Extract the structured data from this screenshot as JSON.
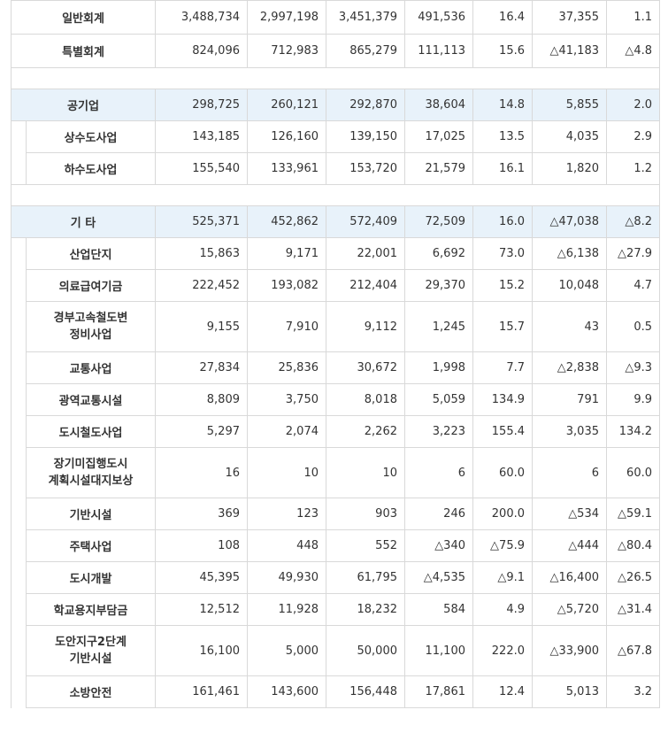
{
  "rows": [
    {
      "name": "일반회계",
      "v": [
        "3,488,734",
        "2,997,198",
        "3,451,379",
        "491,536",
        "16.4",
        "37,355",
        "1.1"
      ]
    },
    {
      "name": "특별회계",
      "v": [
        "824,096",
        "712,983",
        "865,279",
        "111,113",
        "15.6",
        "△41,183",
        "△4.8"
      ]
    },
    {
      "name": "공기업",
      "v": [
        "298,725",
        "260,121",
        "292,870",
        "38,604",
        "14.8",
        "5,855",
        "2.0"
      ]
    },
    {
      "name": "상수도사업",
      "v": [
        "143,185",
        "126,160",
        "139,150",
        "17,025",
        "13.5",
        "4,035",
        "2.9"
      ]
    },
    {
      "name": "하수도사업",
      "v": [
        "155,540",
        "133,961",
        "153,720",
        "21,579",
        "16.1",
        "1,820",
        "1.2"
      ]
    },
    {
      "name": "기 타",
      "v": [
        "525,371",
        "452,862",
        "572,409",
        "72,509",
        "16.0",
        "△47,038",
        "△8.2"
      ]
    },
    {
      "name": "산업단지",
      "v": [
        "15,863",
        "9,171",
        "22,001",
        "6,692",
        "73.0",
        "△6,138",
        "△27.9"
      ]
    },
    {
      "name": "의료급여기금",
      "v": [
        "222,452",
        "193,082",
        "212,404",
        "29,370",
        "15.2",
        "10,048",
        "4.7"
      ]
    },
    {
      "name1": "경부고속철도변",
      "name2": "정비사업",
      "v": [
        "9,155",
        "7,910",
        "9,112",
        "1,245",
        "15.7",
        "43",
        "0.5"
      ]
    },
    {
      "name": "교통사업",
      "v": [
        "27,834",
        "25,836",
        "30,672",
        "1,998",
        "7.7",
        "△2,838",
        "△9.3"
      ]
    },
    {
      "name": "광역교통시설",
      "v": [
        "8,809",
        "3,750",
        "8,018",
        "5,059",
        "134.9",
        "791",
        "9.9"
      ]
    },
    {
      "name": "도시철도사업",
      "v": [
        "5,297",
        "2,074",
        "2,262",
        "3,223",
        "155.4",
        "3,035",
        "134.2"
      ]
    },
    {
      "name1": "장기미집행도시",
      "name2": "계획시설대지보상",
      "v": [
        "16",
        "10",
        "10",
        "6",
        "60.0",
        "6",
        "60.0"
      ]
    },
    {
      "name": "기반시설",
      "v": [
        "369",
        "123",
        "903",
        "246",
        "200.0",
        "△534",
        "△59.1"
      ]
    },
    {
      "name": "주택사업",
      "v": [
        "108",
        "448",
        "552",
        "△340",
        "△75.9",
        "△444",
        "△80.4"
      ]
    },
    {
      "name": "도시개발",
      "v": [
        "45,395",
        "49,930",
        "61,795",
        "△4,535",
        "△9.1",
        "△16,400",
        "△26.5"
      ]
    },
    {
      "name": "학교용지부담금",
      "v": [
        "12,512",
        "11,928",
        "18,232",
        "584",
        "4.9",
        "△5,720",
        "△31.4"
      ]
    },
    {
      "name1": "도안지구2단계",
      "name2": "기반시설",
      "v": [
        "16,100",
        "5,000",
        "50,000",
        "11,100",
        "222.0",
        "△33,900",
        "△67.8"
      ]
    },
    {
      "name": "소방안전",
      "v": [
        "161,461",
        "143,600",
        "156,448",
        "17,861",
        "12.4",
        "5,013",
        "3.2"
      ]
    }
  ]
}
